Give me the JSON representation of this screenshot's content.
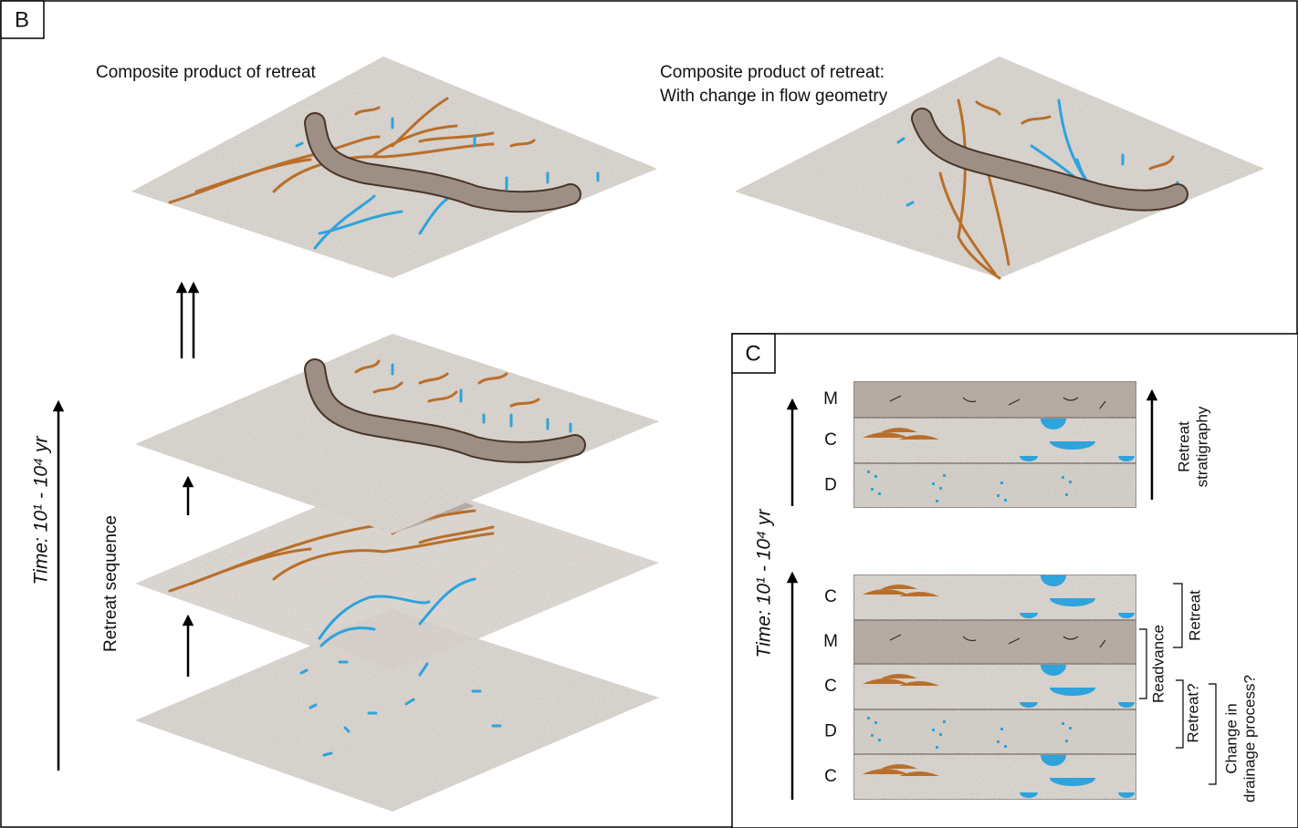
{
  "panel_b": {
    "label": "B",
    "left_title": "Composite product of retreat",
    "right_title": [
      "Composite product of retreat:",
      "With change in flow geometry"
    ],
    "time_label": "Time: 10¹ - 10⁴ yr",
    "sequence_label": "Retreat sequence"
  },
  "panel_c": {
    "label": "C",
    "time_label": "Time: 10¹ - 10⁴ yr",
    "top_column": [
      "M",
      "C",
      "D"
    ],
    "top_annotation": [
      "Retreat",
      "stratigraphy"
    ],
    "bottom_column": [
      "C",
      "M",
      "C",
      "D",
      "C"
    ],
    "annotations": {
      "retreat": "Retreat",
      "readvance": "Readvance",
      "retreat_q": "Retreat?",
      "drainage": [
        "Change in",
        "drainage process?"
      ]
    }
  }
}
